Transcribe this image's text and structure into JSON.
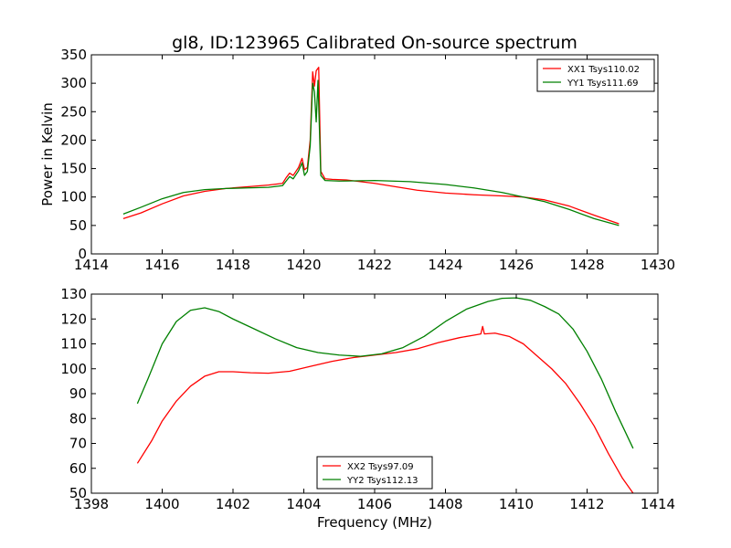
{
  "figure": {
    "title": "gl8, ID:123965 Calibrated On-source spectrum",
    "ylabel": "Power in Kelvin",
    "xlabel": "Frequency (MHz)"
  },
  "chart_data": [
    {
      "type": "line",
      "title": "gl8, ID:123965 Calibrated On-source spectrum",
      "xlabel": "",
      "ylabel": "Power in Kelvin",
      "xlim": [
        1414,
        1430
      ],
      "ylim": [
        0,
        350
      ],
      "xticks": [
        1414,
        1416,
        1418,
        1420,
        1422,
        1424,
        1426,
        1428,
        1430
      ],
      "yticks": [
        0,
        50,
        100,
        150,
        200,
        250,
        300,
        350
      ],
      "legend": "top-right",
      "grid": false,
      "series": [
        {
          "name": "XX1 Tsys110.02",
          "color": "#ff0000",
          "points": [
            [
              1414.9,
              62
            ],
            [
              1415.4,
              72
            ],
            [
              1416.0,
              88
            ],
            [
              1416.6,
              102
            ],
            [
              1417.2,
              110
            ],
            [
              1417.8,
              115
            ],
            [
              1418.4,
              118
            ],
            [
              1419.0,
              121
            ],
            [
              1419.4,
              124
            ],
            [
              1419.5,
              134
            ],
            [
              1419.6,
              142
            ],
            [
              1419.7,
              138
            ],
            [
              1419.85,
              152
            ],
            [
              1419.95,
              168
            ],
            [
              1420.02,
              148
            ],
            [
              1420.1,
              152
            ],
            [
              1420.18,
              200
            ],
            [
              1420.25,
              320
            ],
            [
              1420.3,
              295
            ],
            [
              1420.35,
              322
            ],
            [
              1420.42,
              328
            ],
            [
              1420.48,
              145
            ],
            [
              1420.6,
              132
            ],
            [
              1420.8,
              131
            ],
            [
              1421.2,
              130
            ],
            [
              1422.0,
              124
            ],
            [
              1422.6,
              118
            ],
            [
              1423.2,
              112
            ],
            [
              1424.0,
              107
            ],
            [
              1424.8,
              104
            ],
            [
              1425.6,
              102
            ],
            [
              1426.2,
              100
            ],
            [
              1426.8,
              95
            ],
            [
              1427.5,
              84
            ],
            [
              1428.2,
              68
            ],
            [
              1428.9,
              53
            ]
          ]
        },
        {
          "name": "YY1 Tsys111.69",
          "color": "#008000",
          "points": [
            [
              1414.9,
              70
            ],
            [
              1415.4,
              82
            ],
            [
              1416.0,
              97
            ],
            [
              1416.6,
              108
            ],
            [
              1417.2,
              113
            ],
            [
              1417.8,
              115
            ],
            [
              1418.4,
              116
            ],
            [
              1419.0,
              117
            ],
            [
              1419.4,
              120
            ],
            [
              1419.5,
              128
            ],
            [
              1419.6,
              136
            ],
            [
              1419.7,
              132
            ],
            [
              1419.85,
              146
            ],
            [
              1419.95,
              160
            ],
            [
              1420.02,
              138
            ],
            [
              1420.1,
              145
            ],
            [
              1420.18,
              190
            ],
            [
              1420.25,
              300
            ],
            [
              1420.3,
              285
            ],
            [
              1420.35,
              232
            ],
            [
              1420.4,
              305
            ],
            [
              1420.48,
              138
            ],
            [
              1420.6,
              129
            ],
            [
              1421.0,
              128
            ],
            [
              1422.0,
              129
            ],
            [
              1423.0,
              127
            ],
            [
              1424.0,
              122
            ],
            [
              1424.8,
              116
            ],
            [
              1425.6,
              108
            ],
            [
              1426.2,
              100
            ],
            [
              1426.8,
              92
            ],
            [
              1427.5,
              78
            ],
            [
              1428.2,
              62
            ],
            [
              1428.9,
              50
            ]
          ]
        }
      ]
    },
    {
      "type": "line",
      "title": "",
      "xlabel": "Frequency (MHz)",
      "ylabel": "",
      "xlim": [
        1398,
        1414
      ],
      "ylim": [
        50,
        130
      ],
      "xticks": [
        1398,
        1400,
        1402,
        1404,
        1406,
        1408,
        1410,
        1412,
        1414
      ],
      "yticks": [
        50,
        60,
        70,
        80,
        90,
        100,
        110,
        120,
        130
      ],
      "legend": "bottom-center",
      "grid": false,
      "series": [
        {
          "name": "XX2 Tsys97.09",
          "color": "#ff0000",
          "points": [
            [
              1399.3,
              62
            ],
            [
              1399.7,
              71
            ],
            [
              1400.0,
              79
            ],
            [
              1400.4,
              87
            ],
            [
              1400.8,
              93
            ],
            [
              1401.2,
              97
            ],
            [
              1401.6,
              98.8
            ],
            [
              1402.0,
              98.8
            ],
            [
              1402.5,
              98.4
            ],
            [
              1403.0,
              98.2
            ],
            [
              1403.6,
              99
            ],
            [
              1404.2,
              101
            ],
            [
              1404.8,
              103
            ],
            [
              1405.4,
              104.5
            ],
            [
              1406.0,
              105.5
            ],
            [
              1406.6,
              106.5
            ],
            [
              1407.2,
              108
            ],
            [
              1407.8,
              110.5
            ],
            [
              1408.4,
              112.5
            ],
            [
              1408.8,
              113.5
            ],
            [
              1409.0,
              114
            ],
            [
              1409.05,
              117
            ],
            [
              1409.1,
              114
            ],
            [
              1409.4,
              114.3
            ],
            [
              1409.8,
              113
            ],
            [
              1410.2,
              110
            ],
            [
              1410.6,
              105
            ],
            [
              1411.0,
              100
            ],
            [
              1411.4,
              94
            ],
            [
              1411.8,
              86
            ],
            [
              1412.2,
              77
            ],
            [
              1412.6,
              66
            ],
            [
              1413.0,
              56
            ],
            [
              1413.3,
              50
            ]
          ]
        },
        {
          "name": "YY2 Tsys112.13",
          "color": "#008000",
          "points": [
            [
              1399.3,
              86
            ],
            [
              1399.6,
              96
            ],
            [
              1400.0,
              110
            ],
            [
              1400.4,
              119
            ],
            [
              1400.8,
              123.5
            ],
            [
              1401.2,
              124.5
            ],
            [
              1401.6,
              123
            ],
            [
              1402.0,
              120
            ],
            [
              1402.6,
              116
            ],
            [
              1403.2,
              112
            ],
            [
              1403.8,
              108.5
            ],
            [
              1404.4,
              106.5
            ],
            [
              1405.0,
              105.5
            ],
            [
              1405.6,
              105
            ],
            [
              1406.2,
              106
            ],
            [
              1406.8,
              108.5
            ],
            [
              1407.4,
              113
            ],
            [
              1408.0,
              119
            ],
            [
              1408.6,
              124
            ],
            [
              1409.2,
              127
            ],
            [
              1409.6,
              128.3
            ],
            [
              1410.0,
              128.5
            ],
            [
              1410.4,
              127.5
            ],
            [
              1410.8,
              125
            ],
            [
              1411.2,
              122
            ],
            [
              1411.6,
              116
            ],
            [
              1412.0,
              107
            ],
            [
              1412.4,
              96
            ],
            [
              1412.8,
              83
            ],
            [
              1413.3,
              68
            ]
          ]
        }
      ]
    }
  ]
}
